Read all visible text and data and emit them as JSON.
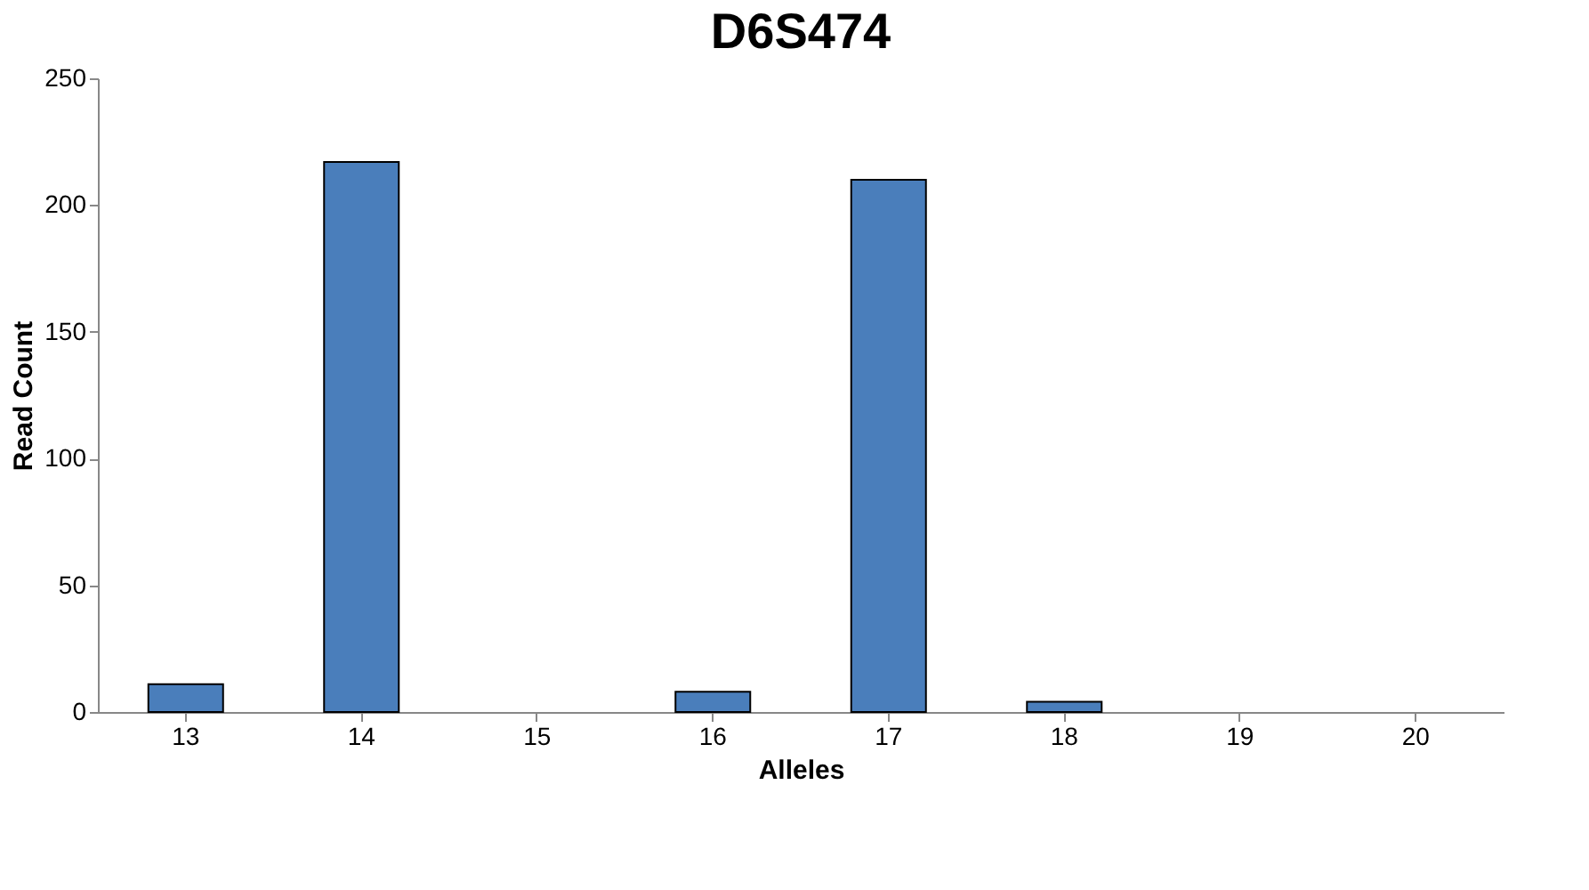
{
  "chart_data": {
    "type": "bar",
    "title": "D6S474",
    "xlabel": "Alleles",
    "ylabel": "Read Count",
    "categories": [
      "13",
      "14",
      "15",
      "16",
      "17",
      "18",
      "19",
      "20"
    ],
    "values": [
      11,
      217,
      0,
      8,
      210,
      4,
      0,
      0
    ],
    "color": "#4a7ebb",
    "ylim": [
      0,
      250
    ],
    "yticks": [
      0,
      50,
      100,
      150,
      200,
      250
    ],
    "grid": false
  }
}
